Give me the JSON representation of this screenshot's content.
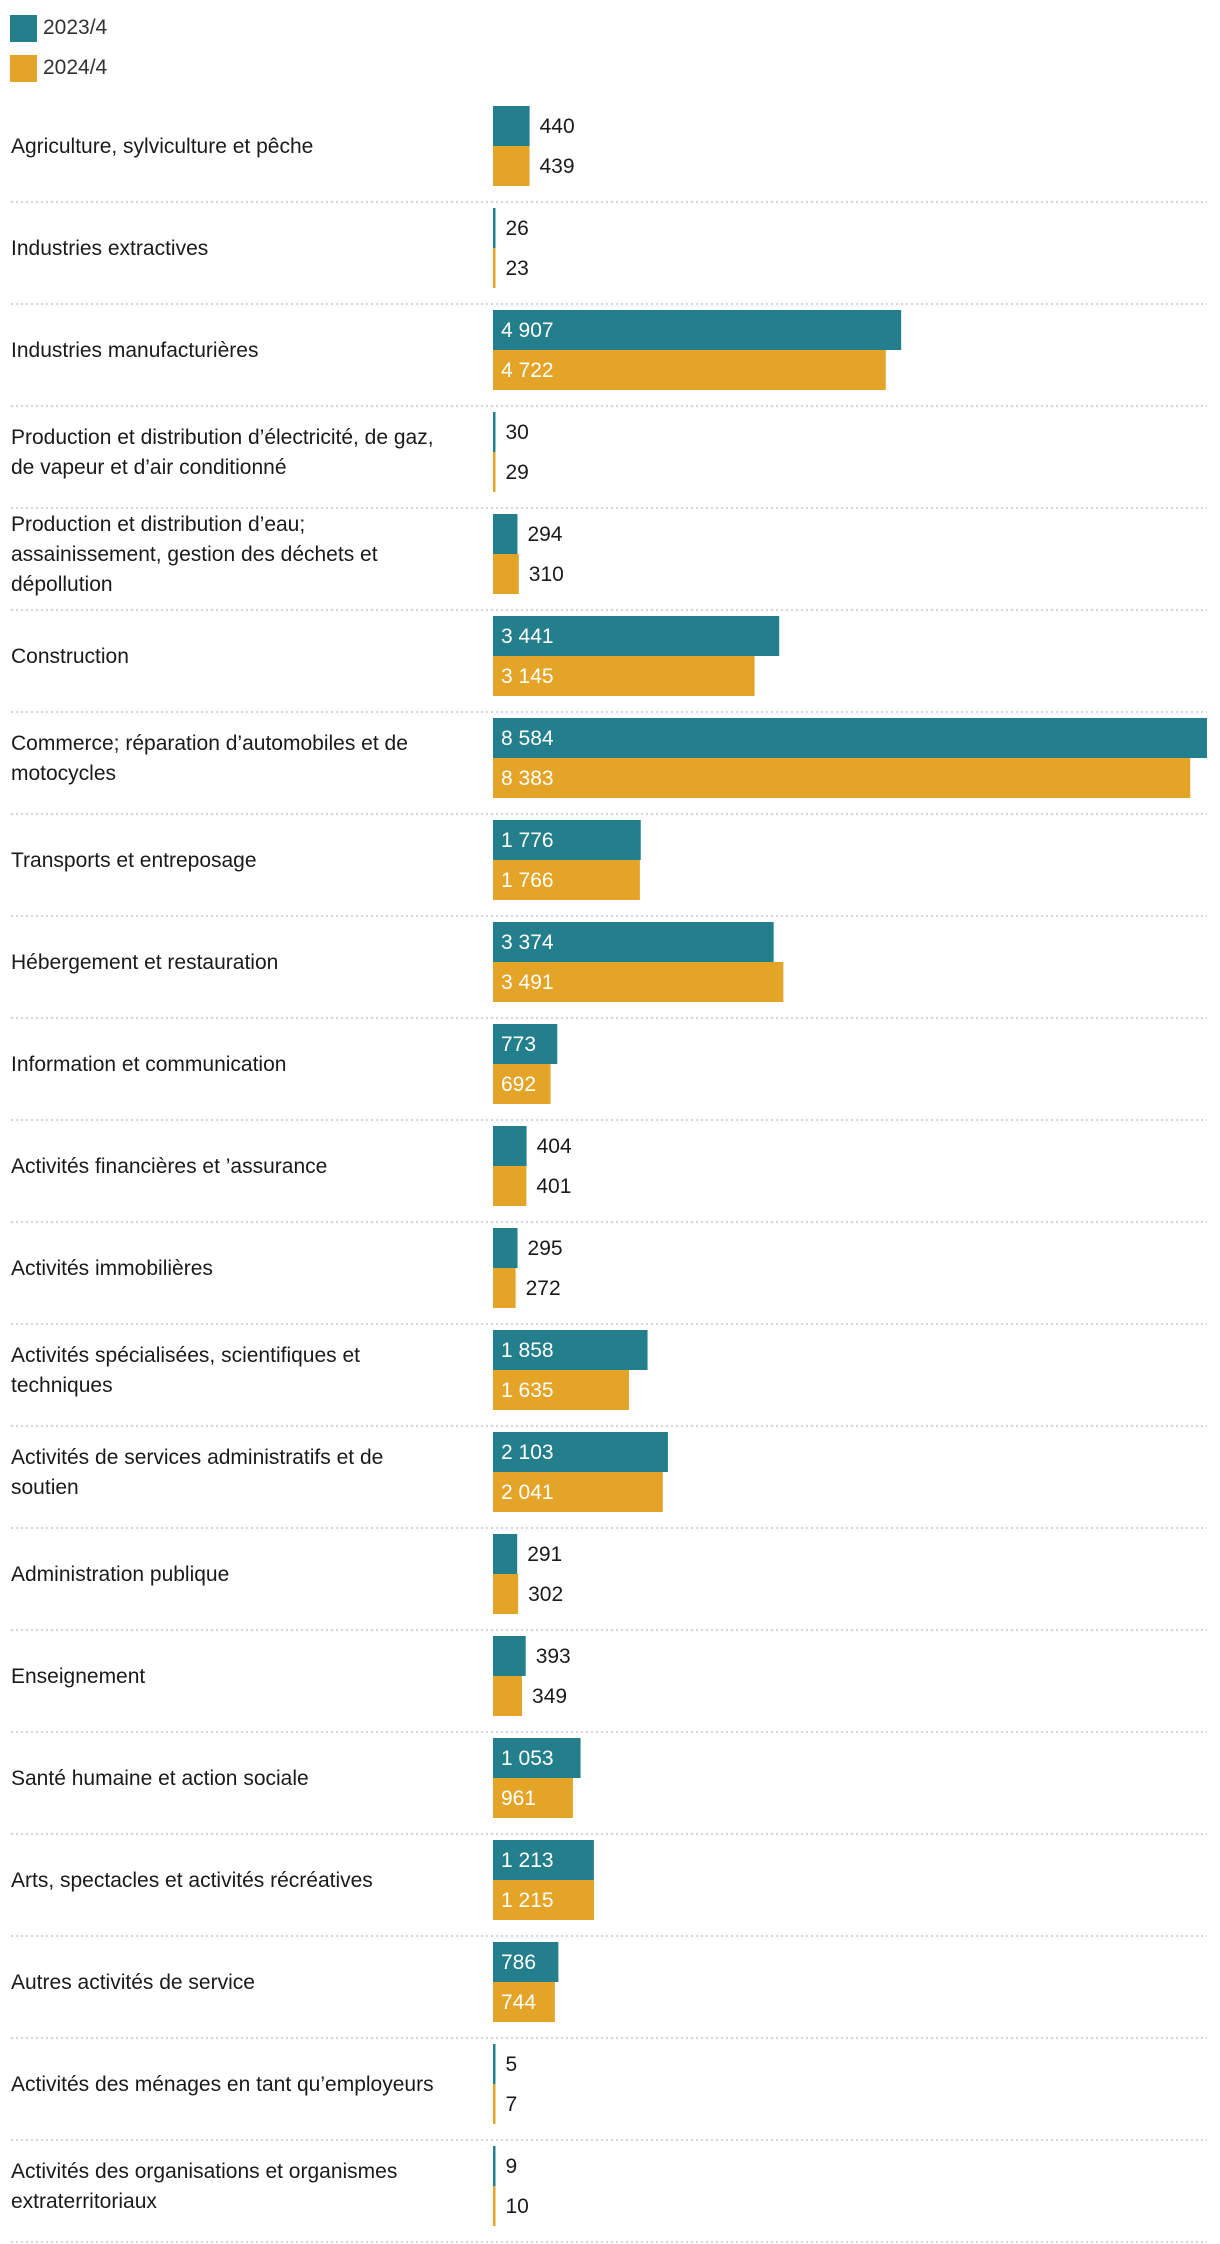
{
  "legend": [
    {
      "name": "2023/4",
      "color": "#237f8b"
    },
    {
      "name": "2024/4",
      "color": "#e3a427"
    }
  ],
  "chart_data": {
    "type": "bar",
    "orientation": "horizontal",
    "xlim": [
      0,
      8584
    ],
    "grid": false,
    "legend_position": "top-left",
    "categories": [
      [
        "Agriculture, sylviculture et pêche"
      ],
      [
        "Industries extractives"
      ],
      [
        "Industries manufacturières"
      ],
      [
        "Production et distribution d’électricité, de gaz,",
        "de vapeur et d’air conditionné"
      ],
      [
        "Production et distribution d’eau;",
        "assainissement, gestion des déchets et",
        "dépollution"
      ],
      [
        "Construction"
      ],
      [
        "Commerce; réparation d’automobiles et de",
        "motocycles"
      ],
      [
        "Transports et entreposage"
      ],
      [
        "Hébergement et restauration"
      ],
      [
        "Information et communication"
      ],
      [
        "Activités financières et ’assurance"
      ],
      [
        "Activités immobilières"
      ],
      [
        "Activités spécialisées, scientifiques et",
        "techniques"
      ],
      [
        "Activités de services administratifs et de",
        "soutien"
      ],
      [
        "Administration publique"
      ],
      [
        "Enseignement"
      ],
      [
        "Santé humaine et action sociale"
      ],
      [
        "Arts, spectacles et activités récréatives"
      ],
      [
        "Autres activités de service"
      ],
      [
        "Activités des ménages en tant qu’employeurs"
      ],
      [
        "Activités des organisations et organismes",
        "extraterritoriaux"
      ]
    ],
    "series": [
      {
        "name": "2023/4",
        "color": "#237f8b",
        "values": [
          440,
          26,
          4907,
          30,
          294,
          3441,
          8584,
          1776,
          3374,
          773,
          404,
          295,
          1858,
          2103,
          291,
          393,
          1053,
          1213,
          786,
          5,
          9
        ],
        "labels": [
          "440",
          "26",
          "4 907",
          "30",
          "294",
          "3 441",
          "8 584",
          "1 776",
          "3 374",
          "773",
          "404",
          "295",
          "1 858",
          "2 103",
          "291",
          "393",
          "1 053",
          "1 213",
          "786",
          "5",
          "9"
        ]
      },
      {
        "name": "2024/4",
        "color": "#e3a427",
        "values": [
          439,
          23,
          4722,
          29,
          310,
          3145,
          8383,
          1766,
          3491,
          692,
          401,
          272,
          1635,
          2041,
          302,
          349,
          961,
          1215,
          744,
          7,
          10
        ],
        "labels": [
          "439",
          "23",
          "4 722",
          "29",
          "310",
          "3 145",
          "8 383",
          "1 766",
          "3 491",
          "692",
          "401",
          "272",
          "1 635",
          "2 041",
          "302",
          "349",
          "961",
          "1 215",
          "744",
          "7",
          "10"
        ]
      }
    ]
  }
}
